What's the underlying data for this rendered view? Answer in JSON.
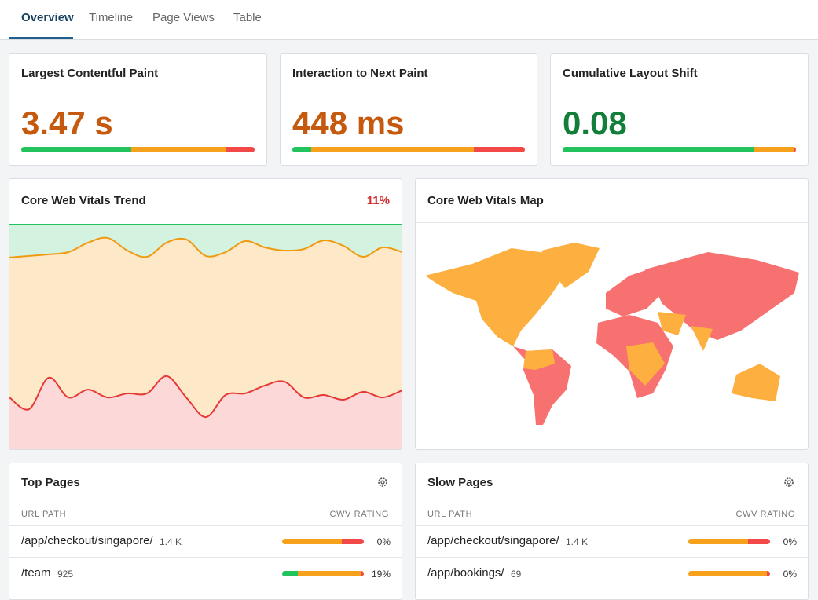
{
  "tabs": [
    {
      "label": "Overview",
      "active": true
    },
    {
      "label": "Timeline",
      "active": false
    },
    {
      "label": "Page Views",
      "active": false
    },
    {
      "label": "Table",
      "active": false
    }
  ],
  "colors": {
    "good": "#22c25d",
    "needs": "#f7a01b",
    "poor": "#f24848"
  },
  "metrics": [
    {
      "title": "Largest Contentful Paint",
      "value": "3.47 s",
      "color": "#c55a0e",
      "bar": {
        "good": 47,
        "needs": 41,
        "poor": 12
      }
    },
    {
      "title": "Interaction to Next Paint",
      "value": "448 ms",
      "color": "#c55a0e",
      "bar": {
        "good": 8,
        "needs": 70,
        "poor": 22
      }
    },
    {
      "title": "Cumulative Layout Shift",
      "value": "0.08",
      "color": "#137d3a",
      "bar": {
        "good": 82,
        "needs": 17,
        "poor": 1
      }
    }
  ],
  "trend": {
    "title": "Core Web Vitals Trend",
    "change": "11%",
    "ylim": [
      0,
      100
    ],
    "good": [
      14.6,
      13.9,
      13.2,
      12.2,
      8.0,
      5.9,
      11.5,
      14.3,
      8.0,
      6.6,
      13.9,
      12.2,
      7.3,
      10.1,
      11.5,
      10.8,
      7.0,
      9.4,
      14.3,
      10.1,
      12.2
    ],
    "poor": [
      23.3,
      18.1,
      32.1,
      23.3,
      26.8,
      23.3,
      25.1,
      25.1,
      32.8,
      23.3,
      14.6,
      24.4,
      25.1,
      28.6,
      30.3,
      23.3,
      24.4,
      22.3,
      25.8,
      23.3,
      26.5
    ]
  },
  "map": {
    "title": "Core Web Vitals Map"
  },
  "tables": [
    {
      "title": "Top Pages",
      "columns": [
        "URL PATH",
        "CWV RATING"
      ],
      "rows": [
        {
          "path": "/app/checkout/singapore/",
          "views": "1.4 K",
          "rating": {
            "good": 0,
            "needs": 73,
            "poor": 27,
            "label": "0%"
          }
        },
        {
          "path": "/team",
          "views": "925",
          "rating": {
            "good": 19,
            "needs": 77,
            "poor": 4,
            "label": "19%"
          }
        }
      ]
    },
    {
      "title": "Slow Pages",
      "columns": [
        "URL PATH",
        "CWV RATING"
      ],
      "rows": [
        {
          "path": "/app/checkout/singapore/",
          "views": "1.4 K",
          "rating": {
            "good": 0,
            "needs": 73,
            "poor": 27,
            "label": "0%"
          }
        },
        {
          "path": "/app/bookings/",
          "views": "69",
          "rating": {
            "good": 0,
            "needs": 96,
            "poor": 4,
            "label": "0%"
          }
        }
      ]
    }
  ]
}
